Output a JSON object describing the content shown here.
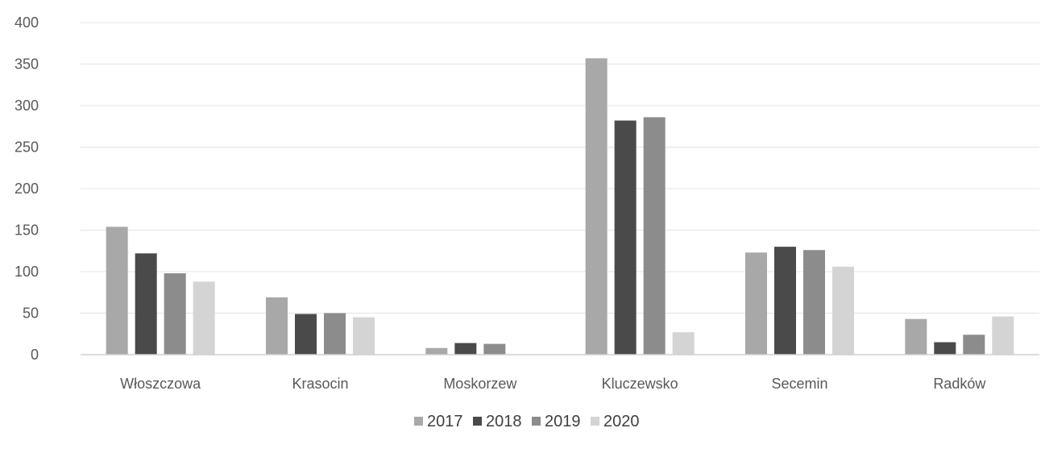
{
  "chart_data": {
    "type": "bar",
    "title": "",
    "xlabel": "",
    "ylabel": "",
    "ylim": [
      0,
      400
    ],
    "yticks": [
      0,
      50,
      100,
      150,
      200,
      250,
      300,
      350,
      400
    ],
    "grid": true,
    "legend_position": "bottom",
    "categories": [
      "Włoszczowa",
      "Krasocin",
      "Moskorzew",
      "Kluczewsko",
      "Secemin",
      "Radków"
    ],
    "series": [
      {
        "name": "2017",
        "color": "#a8a8a8",
        "values": [
          154,
          69,
          8,
          357,
          123,
          43
        ]
      },
      {
        "name": "2018",
        "color": "#4a4a4a",
        "values": [
          122,
          49,
          14,
          282,
          130,
          15
        ]
      },
      {
        "name": "2019",
        "color": "#8c8c8c",
        "values": [
          98,
          50,
          13,
          286,
          126,
          24
        ]
      },
      {
        "name": "2020",
        "color": "#d4d4d4",
        "values": [
          88,
          45,
          0,
          27,
          106,
          46
        ]
      }
    ]
  }
}
